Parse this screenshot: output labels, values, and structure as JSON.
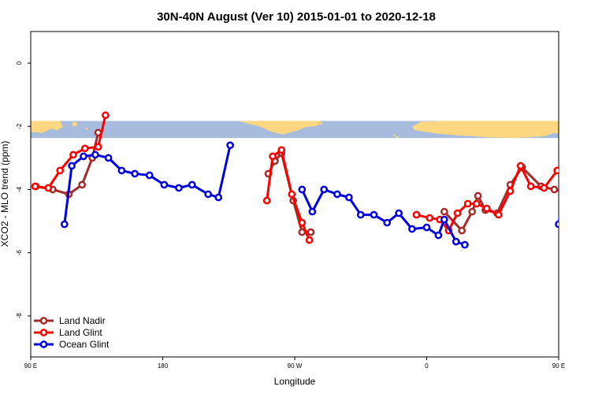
{
  "chart_data": {
    "type": "line",
    "title": "30N-40N August (Ver 10)   2015-01-01 to 2020-12-18",
    "xlabel": "Longitude",
    "ylabel": "XCO2 - MLO trend (ppm)",
    "xlim": [
      90,
      450
    ],
    "ylim": [
      -9.3,
      1.0
    ],
    "xticks": [
      {
        "value": 90,
        "label": "90 E"
      },
      {
        "value": 180,
        "label": "180"
      },
      {
        "value": 270,
        "label": "90 W"
      },
      {
        "value": 360,
        "label": "0"
      },
      {
        "value": 450,
        "label": "90 E"
      },
      {
        "value": 540,
        "label": "180"
      }
    ],
    "yticks": [
      {
        "value": 0,
        "label": "0"
      },
      {
        "value": -2,
        "label": "-2"
      },
      {
        "value": -4,
        "label": "-4"
      },
      {
        "value": -6,
        "label": "-6"
      },
      {
        "value": -8,
        "label": "-8"
      }
    ],
    "grid": false,
    "legend_position": "bottom-left",
    "map_strip": {
      "y_top": -1.83,
      "y_bottom": -2.37,
      "ocean_color": "#A7BCDD",
      "land_color": "#FCD77F"
    },
    "series": [
      {
        "name": "Land Nadir",
        "color": "#A52A2A",
        "segments": [
          [
            [
              93.5,
              -3.9
            ],
            [
              105,
              -4.0
            ],
            [
              116,
              -4.15
            ],
            [
              125,
              -3.85
            ],
            [
              132,
              -3.0
            ],
            [
              136,
              -2.2
            ]
          ],
          [
            [
              252,
              -3.5
            ],
            [
              256.5,
              -3.1
            ],
            [
              261,
              -2.85
            ],
            [
              269,
              -4.35
            ],
            [
              275,
              -5.35
            ],
            [
              281,
              -5.35
            ]
          ],
          [
            [
              372,
              -4.7
            ],
            [
              384,
              -5.3
            ],
            [
              391,
              -4.7
            ],
            [
              395,
              -4.2
            ],
            [
              400,
              -4.65
            ],
            [
              408,
              -4.75
            ],
            [
              417,
              -3.85
            ],
            [
              425,
              -3.3
            ],
            [
              438,
              -3.9
            ],
            [
              447,
              -4.0
            ],
            [
              461,
              -4.15
            ],
            [
              469,
              -3.85
            ],
            [
              476,
              -3.0
            ],
            [
              479,
              -2.2
            ]
          ]
        ]
      },
      {
        "name": "Land Glint",
        "color": "#FF0000",
        "segments": [
          [
            [
              93,
              -3.9
            ],
            [
              102,
              -3.95
            ],
            [
              110,
              -3.4
            ],
            [
              119,
              -2.9
            ],
            [
              127,
              -2.7
            ],
            [
              136,
              -2.65
            ],
            [
              141,
              -1.65
            ]
          ],
          [
            [
              251,
              -4.35
            ],
            [
              255,
              -2.95
            ],
            [
              261,
              -2.75
            ],
            [
              268,
              -4.15
            ],
            [
              275,
              -5.05
            ],
            [
              280,
              -5.6
            ]
          ],
          [
            [
              353,
              -4.8
            ],
            [
              362,
              -4.9
            ],
            [
              369,
              -4.95
            ],
            [
              375,
              -5.3
            ],
            [
              381,
              -4.75
            ],
            [
              388,
              -4.45
            ],
            [
              394,
              -4.45
            ],
            [
              401,
              -4.6
            ],
            [
              409,
              -4.8
            ],
            [
              417,
              -4.05
            ],
            [
              424,
              -3.25
            ],
            [
              431,
              -3.9
            ],
            [
              440,
              -3.95
            ],
            [
              449,
              -3.4
            ],
            [
              458,
              -2.9
            ],
            [
              467,
              -2.65
            ],
            [
              480,
              -2.65
            ],
            [
              484,
              -1.65
            ]
          ]
        ]
      },
      {
        "name": "Ocean Glint",
        "color": "#0000E0",
        "segments": [
          [
            [
              113,
              -5.1
            ],
            [
              118,
              -3.25
            ],
            [
              126,
              -2.95
            ],
            [
              134,
              -2.9
            ],
            [
              143,
              -3.0
            ],
            [
              152,
              -3.4
            ],
            [
              161,
              -3.5
            ],
            [
              171,
              -3.55
            ],
            [
              181,
              -3.85
            ],
            [
              191,
              -3.95
            ],
            [
              200,
              -3.85
            ],
            [
              211,
              -4.15
            ],
            [
              218,
              -4.25
            ],
            [
              226,
              -2.6
            ]
          ],
          [
            [
              275,
              -4.0
            ],
            [
              282,
              -4.7
            ],
            [
              290,
              -4.0
            ],
            [
              299,
              -4.15
            ],
            [
              307,
              -4.25
            ],
            [
              315,
              -4.8
            ],
            [
              324,
              -4.8
            ],
            [
              333,
              -5.05
            ],
            [
              341,
              -4.75
            ],
            [
              350,
              -5.25
            ],
            [
              360,
              -5.2
            ],
            [
              368,
              -5.45
            ],
            [
              372,
              -4.95
            ],
            [
              380,
              -5.65
            ],
            [
              386,
              -5.75
            ]
          ],
          [
            [
              450,
              -5.1
            ],
            [
              455,
              -3.25
            ],
            [
              467,
              -2.95
            ],
            [
              478,
              -2.9
            ],
            [
              486,
              -3.0
            ],
            [
              494,
              -3.4
            ],
            [
              503,
              -3.5
            ]
          ]
        ]
      }
    ]
  }
}
